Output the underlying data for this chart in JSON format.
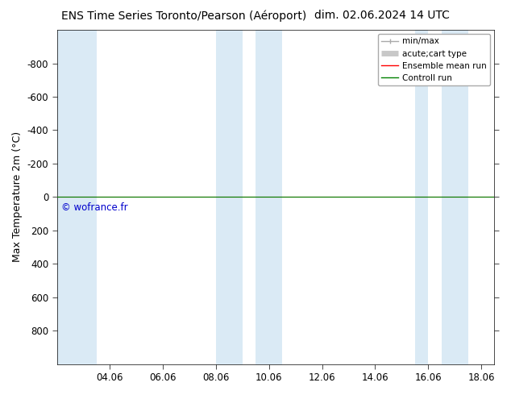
{
  "title_left": "ENS Time Series Toronto/Pearson (Aéroport)",
  "title_right": "dim. 02.06.2024 14 UTC",
  "ylabel": "Max Temperature 2m (°C)",
  "ylim_top": -1000,
  "ylim_bottom": 1000,
  "yticks": [
    -800,
    -600,
    -400,
    -200,
    0,
    200,
    400,
    600,
    800
  ],
  "xlim": [
    2.0,
    18.5
  ],
  "xtick_labels": [
    "04.06",
    "06.06",
    "08.06",
    "10.06",
    "12.06",
    "14.06",
    "16.06",
    "18.06"
  ],
  "xtick_positions": [
    4.0,
    6.0,
    8.0,
    10.0,
    12.0,
    14.0,
    16.0,
    18.0
  ],
  "background_color": "#ffffff",
  "shaded_regions": [
    [
      2.0,
      3.5
    ],
    [
      8.0,
      9.0
    ],
    [
      9.5,
      10.5
    ],
    [
      15.5,
      16.0
    ],
    [
      16.5,
      17.5
    ]
  ],
  "shaded_color": "#daeaf5",
  "green_line_y": 0,
  "red_line_y": 0,
  "watermark_text": "© wofrance.fr",
  "watermark_color": "#0000cc",
  "legend_labels": [
    "min/max",
    "acute;cart type",
    "Ensemble mean run",
    "Controll run"
  ],
  "legend_colors": [
    "#aaaaaa",
    "#c8c8c8",
    "#ff0000",
    "#008000"
  ],
  "title_fontsize": 10,
  "axis_label_fontsize": 9,
  "tick_fontsize": 8.5
}
